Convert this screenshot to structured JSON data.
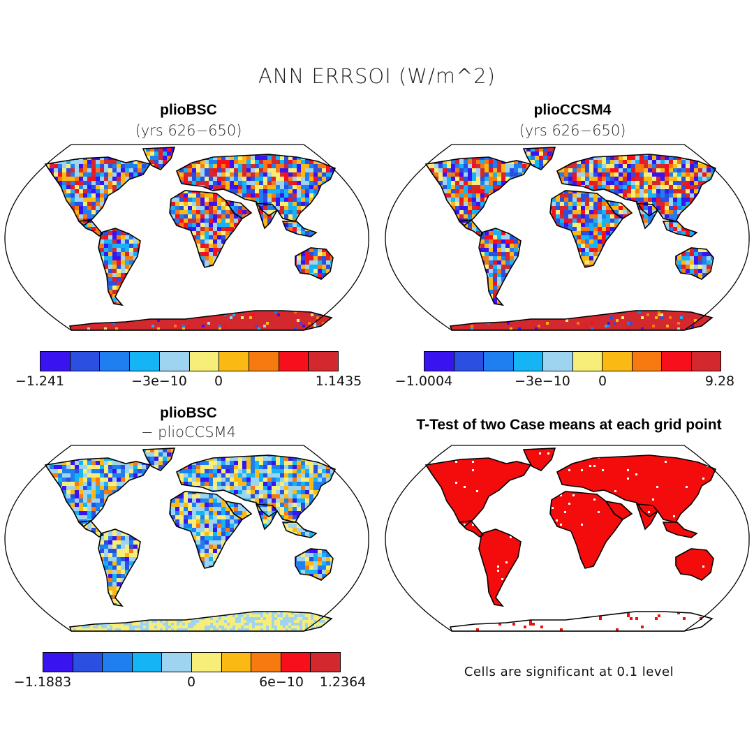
{
  "title": "ANN ERRSOI (W/m^2)",
  "palette": [
    "#3a14f0",
    "#2b4fe0",
    "#1f7ff0",
    "#14b4f5",
    "#9fd4f0",
    "#f7ee7a",
    "#fbb914",
    "#f77a10",
    "#f7101c",
    "#d2282e"
  ],
  "panels": [
    {
      "title": "plioBSC",
      "subtitle": "(yrs 626−650)",
      "fill": "random",
      "antarctic": "red",
      "colorbar": {
        "labels": [
          "−1.241",
          "−3e−10",
          "0",
          "1.1435"
        ]
      }
    },
    {
      "title": "plioCCSM4",
      "subtitle": "(yrs 626−650)",
      "fill": "random",
      "antarctic": "red",
      "colorbar": {
        "labels": [
          "−1.0004",
          "−3e−10",
          "0",
          "9.28"
        ]
      }
    },
    {
      "title": "plioBSC",
      "subtitle": "− plioCCSM4",
      "fill": "diff",
      "antarctic": "pale",
      "colorbar": {
        "labels": [
          "−1.1883",
          "0",
          "6e−10",
          "1.2364"
        ]
      }
    },
    {
      "title": "T-Test of two Case means at each grid point",
      "subtitle": "",
      "fill": "ttest",
      "antarctic": "dots",
      "note": "Cells are significant at 0.1 level"
    }
  ]
}
